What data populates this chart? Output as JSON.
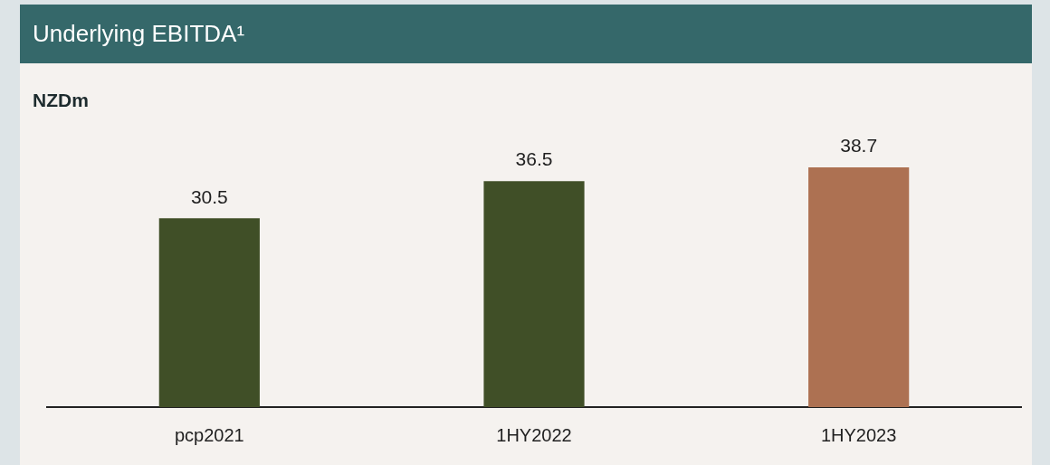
{
  "chart_data": {
    "type": "bar",
    "title": "Underlying EBITDA¹",
    "ylabel": "NZDm",
    "categories": [
      "pcp2021",
      "1HY2022",
      "1HY2023"
    ],
    "values": [
      30.5,
      36.5,
      38.7
    ],
    "colors": [
      "#404f27",
      "#404f27",
      "#ad7152"
    ],
    "data_labels": true,
    "legend": false,
    "grid": false
  }
}
